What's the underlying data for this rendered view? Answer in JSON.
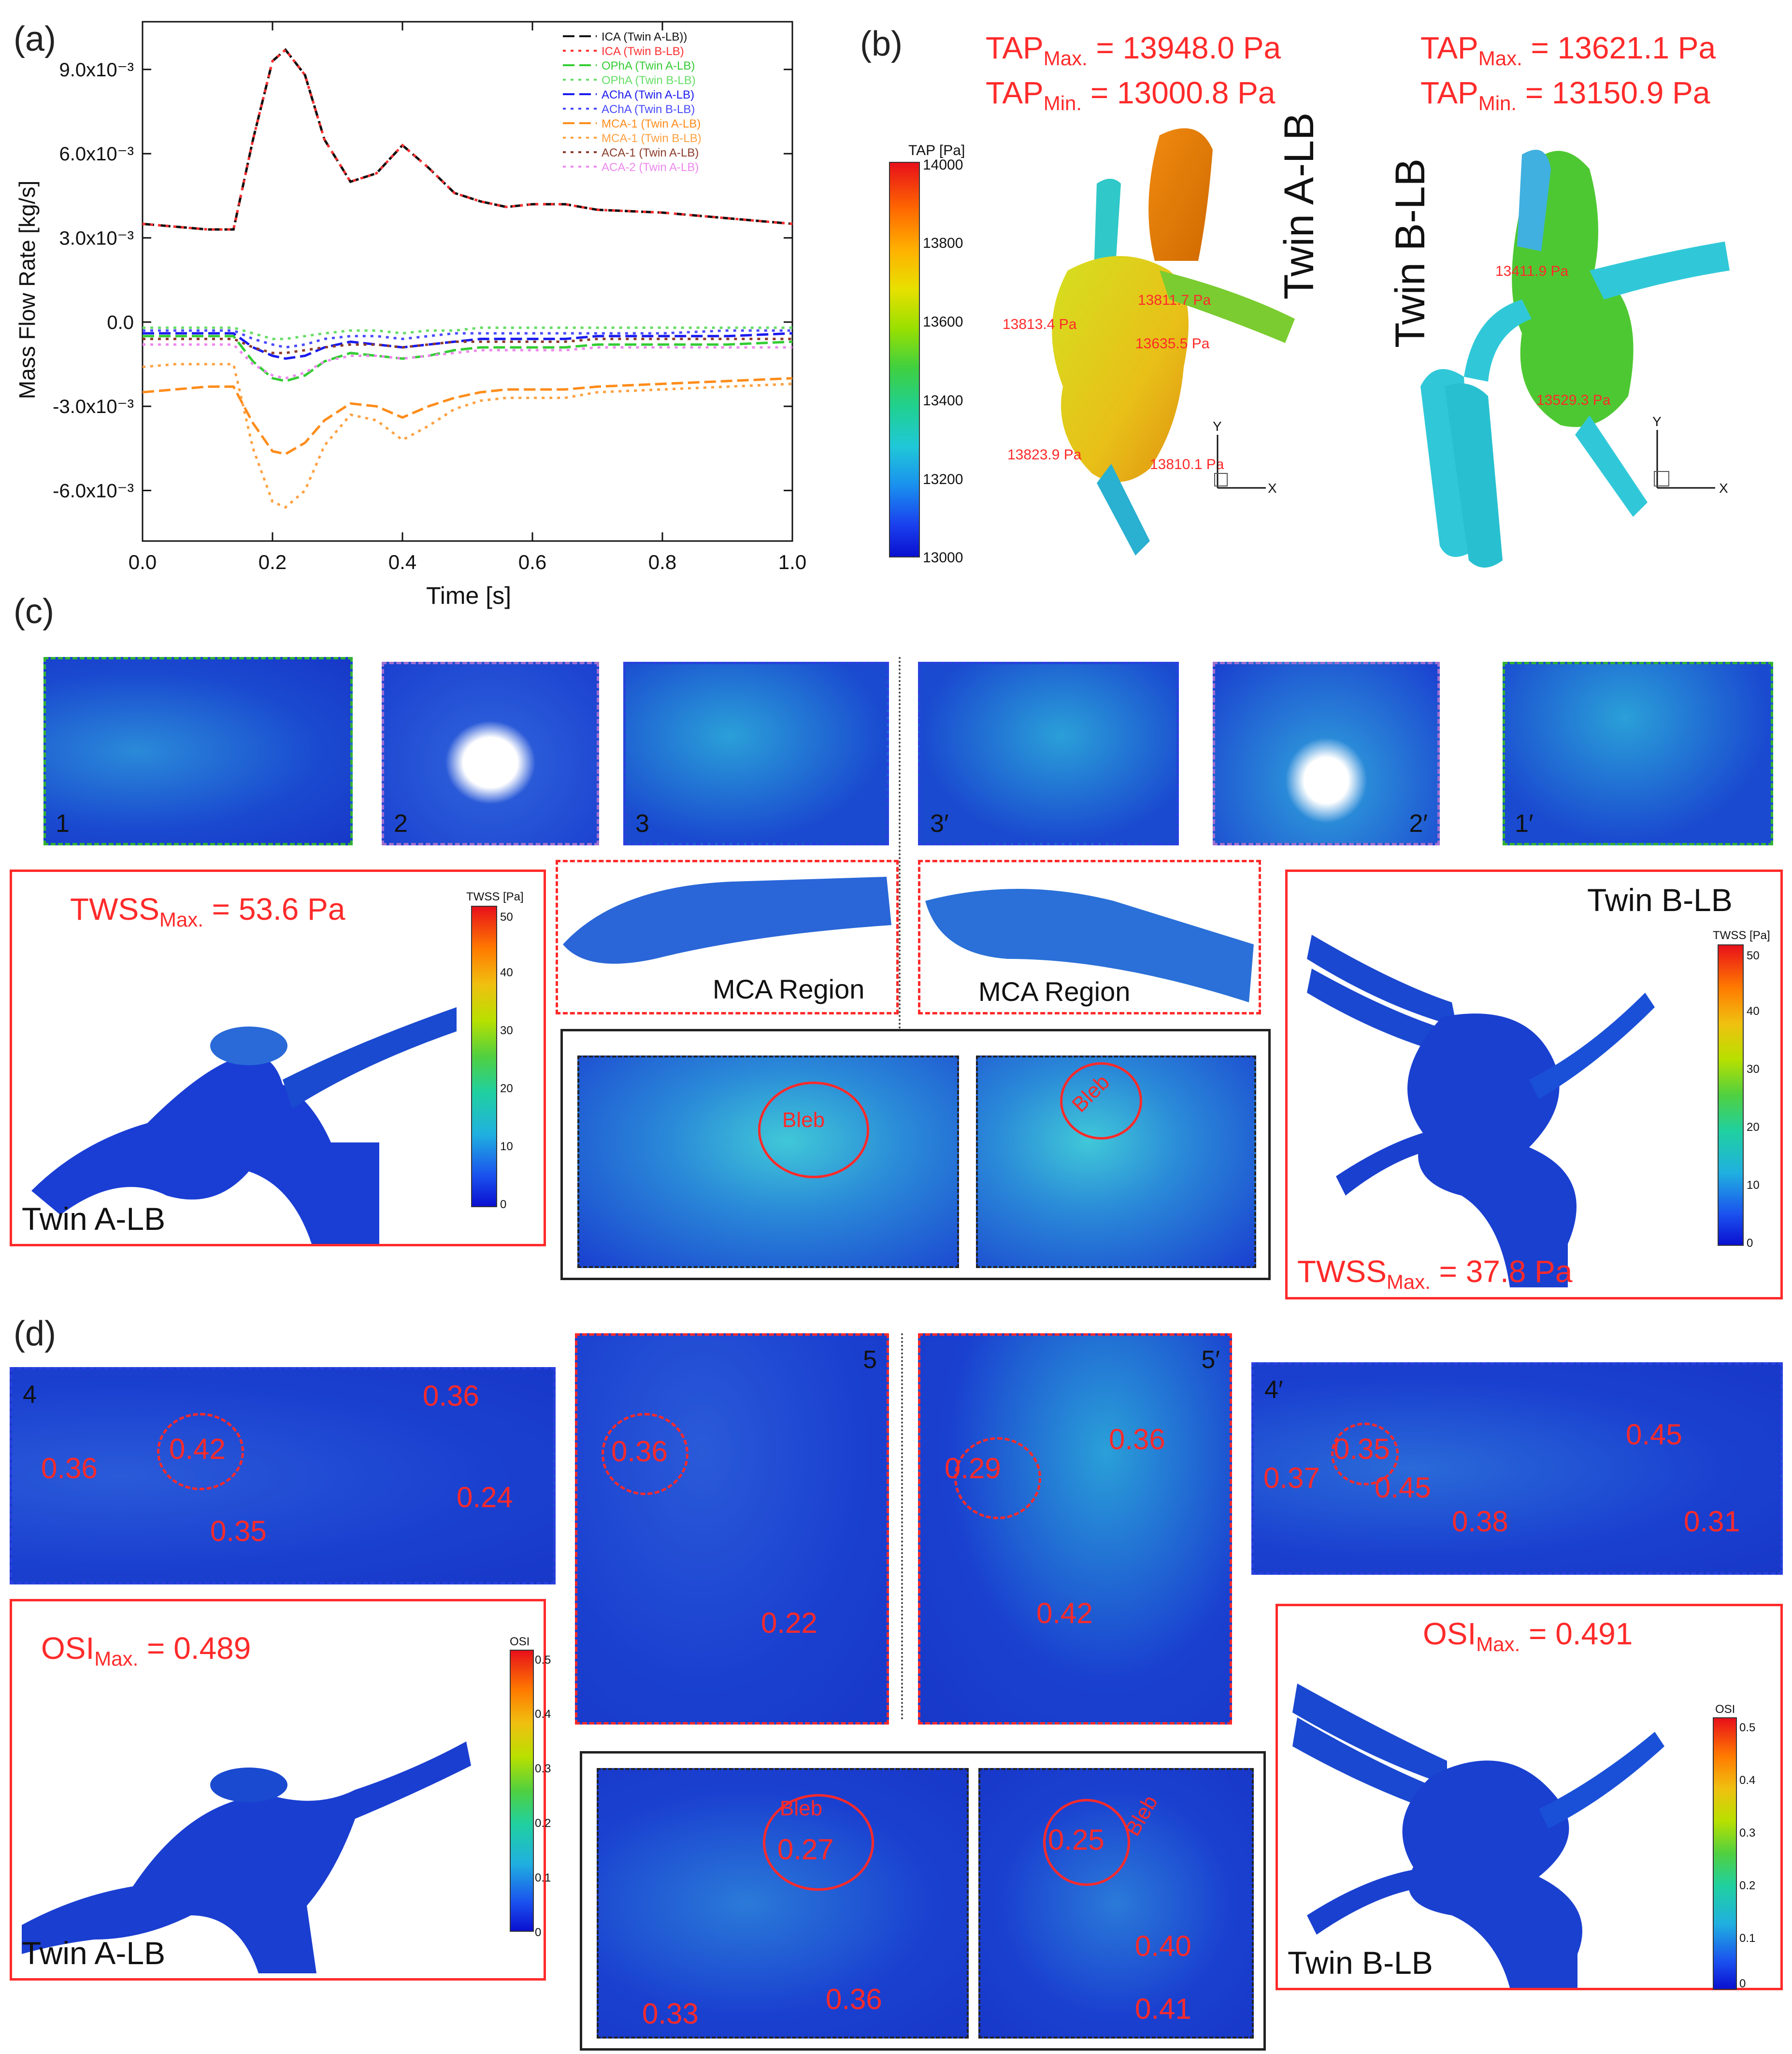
{
  "panels": {
    "a": "(a)",
    "b": "(b)",
    "c": "(c)",
    "d": "(d)"
  },
  "panel_a": {
    "chart_data": {
      "type": "line",
      "xlabel": "Time [s]",
      "ylabel": "Mass Flow Rate [kg/s]",
      "xlim": [
        0.0,
        1.0
      ],
      "ylim": [
        -0.0078,
        0.0107
      ],
      "xticks": [
        "0.0",
        "0.2",
        "0.4",
        "0.6",
        "0.8",
        "1.0"
      ],
      "xtick_values": [
        0.0,
        0.2,
        0.4,
        0.6,
        0.8,
        1.0
      ],
      "yticks": [
        "9.0x10⁻³",
        "6.0x10⁻³",
        "3.0x10⁻³",
        "0.0",
        "-3.0x10⁻³",
        "-6.0x10⁻³"
      ],
      "ytick_values": [
        0.009,
        0.006,
        0.003,
        0.0,
        -0.003,
        -0.006
      ],
      "legend_position": "top-right",
      "x": [
        0.0,
        0.05,
        0.1,
        0.14,
        0.17,
        0.2,
        0.22,
        0.25,
        0.28,
        0.32,
        0.36,
        0.4,
        0.44,
        0.48,
        0.52,
        0.56,
        0.6,
        0.65,
        0.7,
        0.8,
        0.9,
        1.0
      ],
      "series": [
        {
          "name": "ICA (Twin A-LB))",
          "color": "#111111",
          "dash": "24,10",
          "values": [
            0.0035,
            0.0034,
            0.0033,
            0.0033,
            0.0065,
            0.0093,
            0.0097,
            0.0088,
            0.0065,
            0.005,
            0.0053,
            0.0063,
            0.0055,
            0.0046,
            0.0043,
            0.0041,
            0.0042,
            0.0042,
            0.004,
            0.0039,
            0.0037,
            0.0035
          ]
        },
        {
          "name": "ICA (Twin B-LB)",
          "color": "#ff3030",
          "dash": "6,10",
          "values": [
            0.0035,
            0.0034,
            0.0033,
            0.0033,
            0.0065,
            0.0093,
            0.0097,
            0.0088,
            0.0065,
            0.005,
            0.0053,
            0.0063,
            0.0055,
            0.0046,
            0.0043,
            0.0041,
            0.0042,
            0.0042,
            0.004,
            0.0039,
            0.0037,
            0.0035
          ]
        },
        {
          "name": "OPhA (Twin A-LB)",
          "color": "#33cc33",
          "dash": "24,10",
          "values": [
            -0.0005,
            -0.0005,
            -0.0005,
            -0.0005,
            -0.0014,
            -0.002,
            -0.0021,
            -0.0019,
            -0.0014,
            -0.0011,
            -0.0012,
            -0.0013,
            -0.0012,
            -0.001,
            -0.0009,
            -0.0009,
            -0.0009,
            -0.0009,
            -0.0008,
            -0.0008,
            -0.0008,
            -0.0007
          ]
        },
        {
          "name": "OPhA (Twin B-LB)",
          "color": "#66dd66",
          "dash": "6,10",
          "values": [
            -0.0002,
            -0.0002,
            -0.0002,
            -0.0002,
            -0.0004,
            -0.0006,
            -0.0006,
            -0.0005,
            -0.0004,
            -0.0003,
            -0.0003,
            -0.0004,
            -0.0003,
            -0.0003,
            -0.0002,
            -0.0002,
            -0.0002,
            -0.0002,
            -0.0002,
            -0.0002,
            -0.0002,
            -0.0002
          ]
        },
        {
          "name": "AChA (Twin A-LB)",
          "color": "#1a1aee",
          "dash": "24,10",
          "values": [
            -0.0004,
            -0.0004,
            -0.0004,
            -0.0004,
            -0.0009,
            -0.0012,
            -0.0013,
            -0.0012,
            -0.0009,
            -0.0007,
            -0.0008,
            -0.0009,
            -0.0008,
            -0.0007,
            -0.0006,
            -0.0006,
            -0.0006,
            -0.0006,
            -0.0005,
            -0.0005,
            -0.0005,
            -0.0004
          ]
        },
        {
          "name": "AChA (Twin B-LB)",
          "color": "#4a4aff",
          "dash": "6,10",
          "values": [
            -0.0003,
            -0.0003,
            -0.0003,
            -0.0003,
            -0.0006,
            -0.0008,
            -0.0009,
            -0.0008,
            -0.0006,
            -0.0005,
            -0.0005,
            -0.0006,
            -0.0005,
            -0.0004,
            -0.0004,
            -0.0004,
            -0.0004,
            -0.0004,
            -0.0004,
            -0.0004,
            -0.0003,
            -0.0003
          ]
        },
        {
          "name": "MCA-1 (Twin A-LB)",
          "color": "#ff8c1a",
          "dash": "24,10",
          "values": [
            -0.0025,
            -0.0024,
            -0.0023,
            -0.0023,
            -0.0036,
            -0.0046,
            -0.0047,
            -0.0043,
            -0.0035,
            -0.0029,
            -0.003,
            -0.0034,
            -0.003,
            -0.0027,
            -0.0025,
            -0.0024,
            -0.0024,
            -0.0024,
            -0.0023,
            -0.0022,
            -0.0021,
            -0.002
          ]
        },
        {
          "name": "MCA-1 (Twin B-LB)",
          "color": "#ffa040",
          "dash": "6,10",
          "values": [
            -0.0016,
            -0.0015,
            -0.0015,
            -0.0015,
            -0.0045,
            -0.0064,
            -0.0066,
            -0.006,
            -0.0044,
            -0.0033,
            -0.0035,
            -0.0042,
            -0.0037,
            -0.0031,
            -0.0028,
            -0.0027,
            -0.0027,
            -0.0027,
            -0.0025,
            -0.0024,
            -0.0023,
            -0.0022
          ]
        },
        {
          "name": "ACA-1 (Twin A-LB)",
          "color": "#8b3a2a",
          "dash": "6,10",
          "values": [
            -0.0006,
            -0.0006,
            -0.0006,
            -0.0006,
            -0.0009,
            -0.0011,
            -0.0011,
            -0.001,
            -0.0009,
            -0.0008,
            -0.0008,
            -0.0009,
            -0.0008,
            -0.0007,
            -0.0007,
            -0.0007,
            -0.0007,
            -0.0007,
            -0.0006,
            -0.0006,
            -0.0006,
            -0.0006
          ]
        },
        {
          "name": "ACA-2 (Twin A-LB)",
          "color": "#ee88ee",
          "dash": "6,10",
          "values": [
            -0.0008,
            -0.0008,
            -0.0008,
            -0.0008,
            -0.0015,
            -0.0019,
            -0.002,
            -0.0018,
            -0.0014,
            -0.0012,
            -0.0012,
            -0.0013,
            -0.0012,
            -0.0011,
            -0.001,
            -0.001,
            -0.001,
            -0.001,
            -0.0009,
            -0.0009,
            -0.0009,
            -0.0009
          ]
        }
      ]
    }
  },
  "panel_b": {
    "left_max": "TAP Max. = 13948.0 Pa",
    "left_max_main": "TAP",
    "left_max_sub": "Max.",
    "left_max_val": "= 13948.0 Pa",
    "left_min_main": "TAP",
    "left_min_sub": "Min.",
    "left_min_val": "= 13000.8 Pa",
    "right_max_main": "TAP",
    "right_max_sub": "Max.",
    "right_max_val": "= 13621.1 Pa",
    "right_min_main": "TAP",
    "right_min_sub": "Min.",
    "right_min_val": "= 13150.9 Pa",
    "colorbar_title": "TAP [Pa]",
    "colorbar_ticks": [
      "14000",
      "13800",
      "13600",
      "13400",
      "13200",
      "13000"
    ],
    "twin_a": "Twin A-LB",
    "twin_b": "Twin B-LB",
    "tags_a": [
      "13811.7 Pa",
      "13813.4 Pa",
      "13635.5 Pa",
      "13823.9 Pa",
      "13810.1 Pa"
    ],
    "tags_b": [
      "13411.9 Pa",
      "13529.3 Pa"
    ],
    "axis_labels": [
      "Y",
      "X"
    ]
  },
  "panel_c": {
    "insets": [
      "1",
      "2",
      "3",
      "3′",
      "2′",
      "1′"
    ],
    "twss_a_main": "TWSS",
    "twss_a_sub": "Max.",
    "twss_a_val": "= 53.6 Pa",
    "twss_b_main": "TWSS",
    "twss_b_sub": "Max.",
    "twss_b_val": "= 37.8 Pa",
    "colorbar_title": "TWSS [Pa]",
    "colorbar_ticks": [
      "50",
      "40",
      "30",
      "20",
      "10",
      "0"
    ],
    "mca_region": "MCA Region",
    "bleb": "Bleb",
    "twin_a": "Twin A-LB",
    "twin_b": "Twin B-LB"
  },
  "panel_d": {
    "insets": [
      "4",
      "5",
      "5′",
      "4′"
    ],
    "osi_a_main": "OSI",
    "osi_a_sub": "Max.",
    "osi_a_val": "= 0.489",
    "osi_b_main": "OSI",
    "osi_b_sub": "Max.",
    "osi_b_val": "= 0.491",
    "colorbar_title": "OSI",
    "colorbar_ticks": [
      "0.5",
      "0.4",
      "0.3",
      "0.2",
      "0.1",
      "0"
    ],
    "inset4_vals": [
      "0.36",
      "0.42",
      "0.35",
      "0.36",
      "0.24"
    ],
    "inset5_vals": [
      "0.36",
      "0.22"
    ],
    "inset5p_vals": [
      "0.29",
      "0.36",
      "0.42"
    ],
    "inset4p_vals": [
      "0.35",
      "0.37",
      "0.45",
      "0.38",
      "0.45",
      "0.31"
    ],
    "bleb_a_vals": [
      "0.27",
      "0.33",
      "0.36"
    ],
    "bleb_b_vals": [
      "0.25",
      "0.40",
      "0.41"
    ],
    "bleb": "Bleb",
    "twin_a": "Twin A-LB",
    "twin_b": "Twin B-LB"
  }
}
